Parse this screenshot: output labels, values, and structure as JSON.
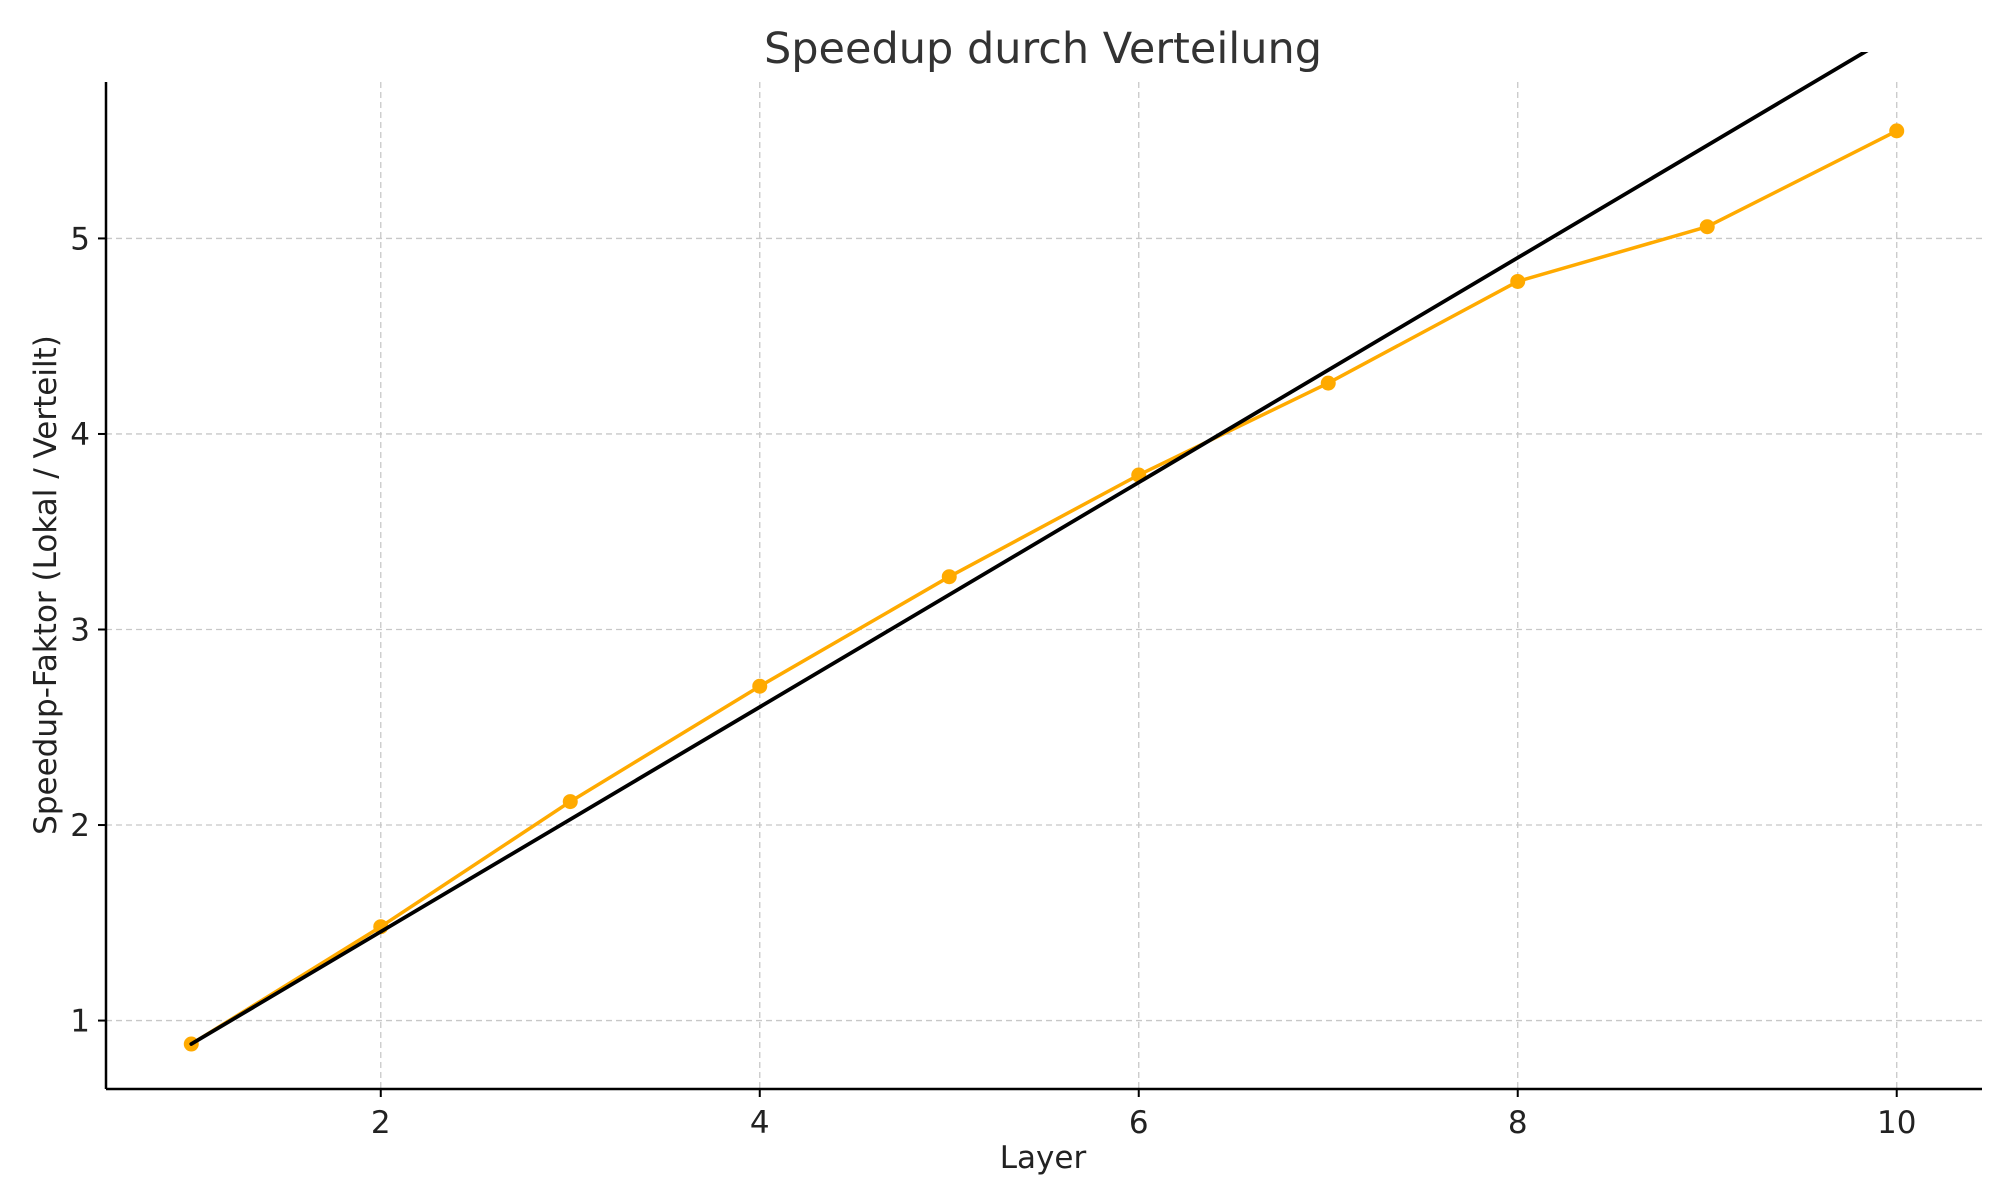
{
  "chart_data": {
    "type": "line",
    "title": "Speedup durch Verteilung",
    "xlabel": "Layer",
    "ylabel": "Speedup-Faktor (Lokal / Verteilt)",
    "xlim": [
      0.55,
      10.45
    ],
    "ylim": [
      0.65,
      5.8
    ],
    "xticks": [
      2,
      4,
      6,
      8,
      10
    ],
    "yticks": [
      1,
      2,
      3,
      4,
      5
    ],
    "grid": true,
    "legend": "none",
    "series": [
      {
        "color": "#ffaa00",
        "marker": "circle",
        "x": [
          1,
          2,
          3,
          4,
          5,
          6,
          7,
          8,
          9,
          10
        ],
        "y": [
          0.88,
          1.48,
          2.12,
          2.71,
          3.27,
          3.79,
          4.26,
          4.78,
          5.06,
          5.55
        ]
      },
      {
        "color": "#000000",
        "marker": "none",
        "x": [
          1,
          10
        ],
        "y": [
          0.88,
          6.05
        ]
      }
    ]
  }
}
